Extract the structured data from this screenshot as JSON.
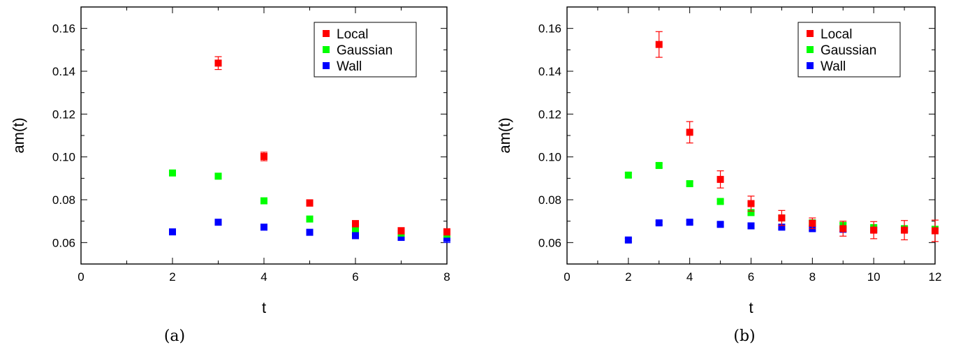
{
  "chart_data": [
    {
      "type": "scatter",
      "caption": "(a)",
      "xlabel": "t",
      "ylabel": "am(t)",
      "xlim": [
        0,
        8
      ],
      "ylim": [
        0.05,
        0.17
      ],
      "xticks": [
        0,
        2,
        4,
        6,
        8
      ],
      "yticks": [
        0.06,
        0.08,
        0.1,
        0.12,
        0.14,
        0.16
      ],
      "ytick_labels": [
        "0.06",
        "0.08",
        "0.10",
        "0.12",
        "0.14",
        "0.16"
      ],
      "legend_position": "top-right",
      "series": [
        {
          "name": "Local",
          "color": "#ff0000",
          "x": [
            3,
            4,
            5,
            6,
            7,
            8
          ],
          "y": [
            0.1438,
            0.1002,
            0.0785,
            0.0688,
            0.0655,
            0.065
          ],
          "err": [
            0.003,
            0.002,
            0.0015,
            0.0015,
            0.0015,
            0.0015
          ]
        },
        {
          "name": "Gaussian",
          "color": "#00ff00",
          "x": [
            2,
            3,
            4,
            5,
            6,
            7,
            8
          ],
          "y": [
            0.0925,
            0.091,
            0.0795,
            0.071,
            0.0665,
            0.0645,
            0.064
          ],
          "err": [
            0.001,
            0.001,
            0.001,
            0.001,
            0.0012,
            0.0015,
            0.0015
          ]
        },
        {
          "name": "Wall",
          "color": "#0000ff",
          "x": [
            2,
            3,
            4,
            5,
            6,
            7,
            8
          ],
          "y": [
            0.065,
            0.0695,
            0.0672,
            0.0648,
            0.0633,
            0.0625,
            0.062
          ],
          "err": [
            0.001,
            0.001,
            0.001,
            0.001,
            0.0015,
            0.0015,
            0.002
          ]
        }
      ]
    },
    {
      "type": "scatter",
      "caption": "(b)",
      "xlabel": "t",
      "ylabel": "am(t)",
      "xlim": [
        0,
        12
      ],
      "ylim": [
        0.05,
        0.17
      ],
      "xticks": [
        0,
        2,
        4,
        6,
        8,
        10,
        12
      ],
      "yticks": [
        0.06,
        0.08,
        0.1,
        0.12,
        0.14,
        0.16
      ],
      "ytick_labels": [
        "0.06",
        "0.08",
        "0.10",
        "0.12",
        "0.14",
        "0.16"
      ],
      "legend_position": "top-right",
      "series": [
        {
          "name": "Local",
          "color": "#ff0000",
          "x": [
            3,
            4,
            5,
            6,
            7,
            8,
            9,
            10,
            11,
            12
          ],
          "y": [
            0.1525,
            0.1115,
            0.0895,
            0.0782,
            0.0715,
            0.069,
            0.0665,
            0.0658,
            0.0658,
            0.0655
          ],
          "err": [
            0.006,
            0.005,
            0.004,
            0.0035,
            0.0035,
            0.0025,
            0.0035,
            0.004,
            0.0045,
            0.005
          ]
        },
        {
          "name": "Gaussian",
          "color": "#00ff00",
          "x": [
            2,
            3,
            4,
            5,
            6,
            7,
            8,
            9,
            10,
            11,
            12
          ],
          "y": [
            0.0915,
            0.096,
            0.0875,
            0.0792,
            0.074,
            0.0715,
            0.0692,
            0.068,
            0.067,
            0.0665,
            0.0662
          ],
          "err": [
            0.001,
            0.001,
            0.001,
            0.001,
            0.001,
            0.001,
            0.001,
            0.0012,
            0.0012,
            0.0012,
            0.0012
          ]
        },
        {
          "name": "Wall",
          "color": "#0000ff",
          "x": [
            2,
            3,
            4,
            5,
            6,
            7,
            8,
            9,
            10,
            11,
            12
          ],
          "y": [
            0.0612,
            0.0692,
            0.0695,
            0.0685,
            0.0678,
            0.0672,
            0.0665,
            0.0662,
            0.066,
            0.066,
            0.066
          ],
          "err": [
            0.0008,
            0.0008,
            0.0008,
            0.0008,
            0.0008,
            0.0008,
            0.001,
            0.001,
            0.001,
            0.001,
            0.0012
          ]
        }
      ]
    }
  ]
}
